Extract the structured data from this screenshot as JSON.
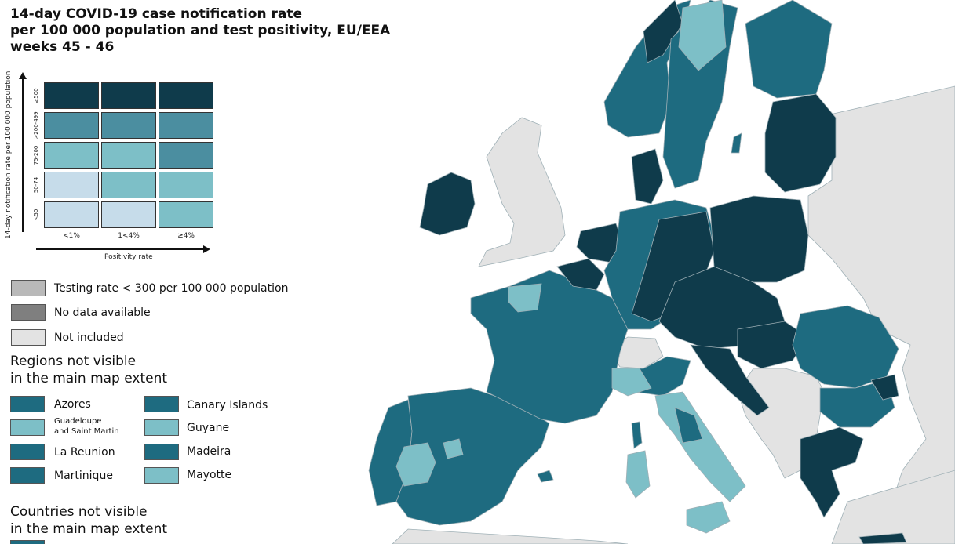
{
  "title": {
    "line1": "14-day COVID-19 case notification rate",
    "line2": "per 100 000 population and test positivity, EU/EEA",
    "line3": "weeks 45 - 46"
  },
  "matrix": {
    "y_axis_label": "14-day notification rate per 100 000 population",
    "x_axis_label": "Positivity rate",
    "rows": [
      "≥500",
      ">200-499",
      "75-200",
      "50-74",
      "<50"
    ],
    "columns": [
      "<1%",
      "1<4%",
      "≥4%"
    ],
    "colors": [
      [
        "#0f3b4b",
        "#0f3b4b",
        "#0f3b4b"
      ],
      [
        "#4b8ea0",
        "#4b8ea0",
        "#4b8ea0"
      ],
      [
        "#7dbfc7",
        "#7dbfc7",
        "#4b8ea0"
      ],
      [
        "#c6dcea",
        "#7dbfc7",
        "#7dbfc7"
      ],
      [
        "#c6dcea",
        "#c6dcea",
        "#7dbfc7"
      ]
    ]
  },
  "legend": {
    "testing_rate": {
      "label": "Testing rate < 300 per 100 000 population",
      "color": "#b9b9b9"
    },
    "no_data": {
      "label": "No data available",
      "color": "#7f7f7f"
    },
    "not_included": {
      "label": "Not included",
      "color": "#e3e3e3"
    },
    "regions_heading_1": "Regions not visible",
    "regions_heading_2": "in the main map extent",
    "regions": [
      {
        "label": "Azores",
        "color": "#1e6b80"
      },
      {
        "label": "Guadeloupe",
        "label2": "and Saint Martin",
        "color": "#7dbfc7"
      },
      {
        "label": "La Reunion",
        "color": "#1e6b80"
      },
      {
        "label": "Martinique",
        "color": "#1e6b80"
      },
      {
        "label": "Canary Islands",
        "color": "#1e6b80"
      },
      {
        "label": "Guyane",
        "color": "#7dbfc7"
      },
      {
        "label": "Madeira",
        "color": "#1e6b80"
      },
      {
        "label": "Mayotte",
        "color": "#7dbfc7"
      }
    ],
    "countries_heading_1": "Countries not visible",
    "countries_heading_2": "in the main map extent"
  },
  "map_colors": {
    "sea": "#ffffff",
    "not_included": "#e3e3e3",
    "dark": "#0f3b4b",
    "mid": "#1e6b80",
    "light": "#7dbfc7",
    "border": "#8fa7b0"
  }
}
